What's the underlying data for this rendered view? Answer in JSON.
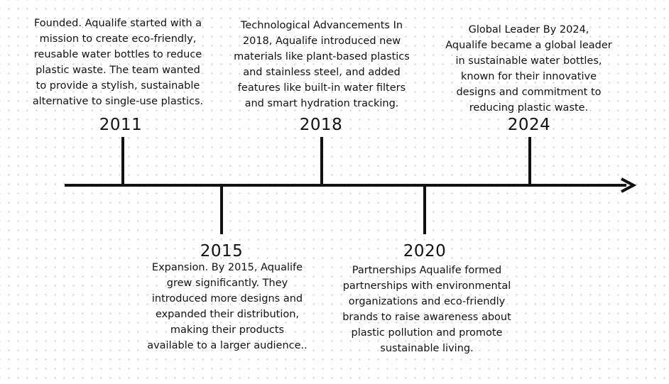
{
  "events": [
    {
      "year": "2011",
      "description": "Founded. Aqualife started with a\nmission to create eco-friendly,\nreusable water bottles to reduce\nplastic waste. The team wanted\nto provide a stylish, sustainable\nalternative to single-use plastics.",
      "position": "above"
    },
    {
      "year": "2015",
      "description": "Expansion. By 2015, Aqualife\ngrew significantly. They\nintroduced more designs and\nexpanded their distribution,\nmaking their products\navailable to a larger audience..",
      "position": "below"
    },
    {
      "year": "2018",
      "description": "Technological Advancements In\n2018, Aqualife introduced new\nmaterials like plant-based plastics\nand stainless steel, and added\nfeatures like built-in water filters\nand smart hydration tracking.",
      "position": "above"
    },
    {
      "year": "2020",
      "description": "Partnerships Aqualife formed\npartnerships with environmental\norganizations and eco-friendly\nbrands to raise awareness about\nplastic pollution and promote\nsustainable living.",
      "position": "below"
    },
    {
      "year": "2024",
      "description": "Global Leader By 2024,\nAqualife became a global leader\nin sustainable water bottles,\nknown for their innovative\ndesigns and commitment to\nreducing plastic waste.",
      "position": "above"
    }
  ],
  "colors": {
    "line": "#111111",
    "text": "#111111",
    "dots": "#cfcfcf"
  }
}
